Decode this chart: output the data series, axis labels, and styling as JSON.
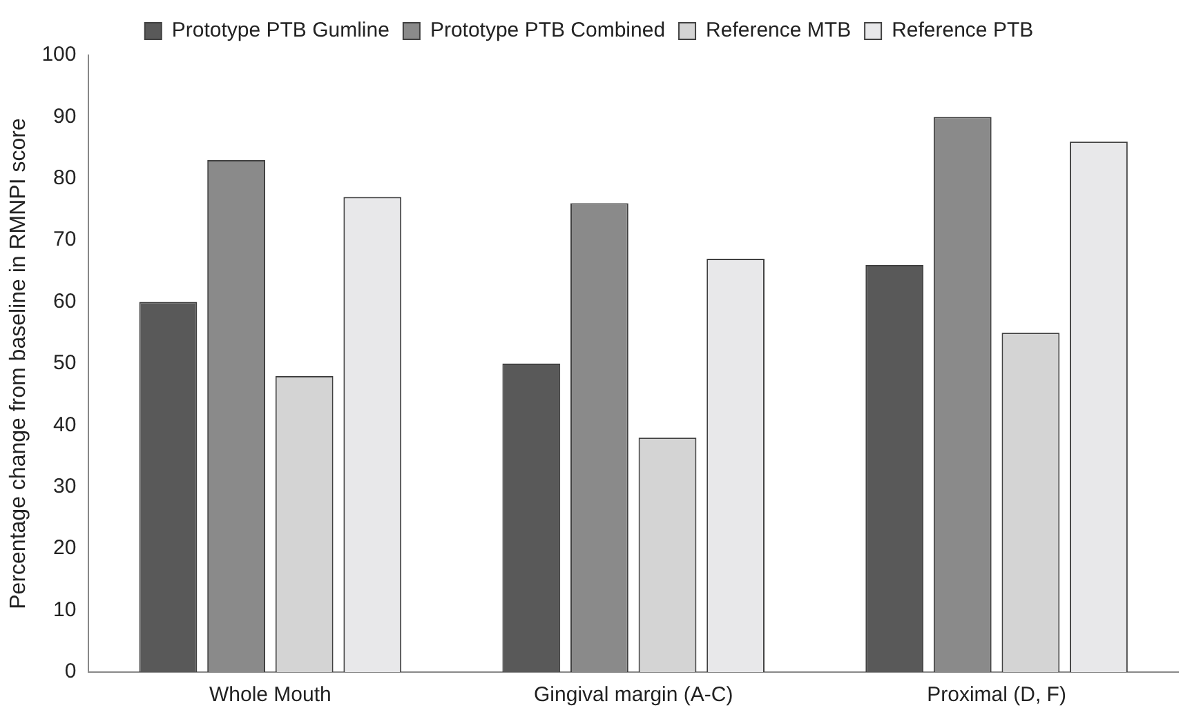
{
  "chart_data": {
    "type": "bar",
    "ylabel": "Percentage change from baseline in RMNPI score",
    "categories": [
      "Whole Mouth",
      "Gingival margin (A-C)",
      "Proximal (D, F)"
    ],
    "series": [
      {
        "name": "Prototype PTB Gumline",
        "color": "#595959",
        "values": [
          60,
          50,
          66
        ]
      },
      {
        "name": "Prototype PTB Combined",
        "color": "#8a8a8a",
        "values": [
          83,
          76,
          90
        ]
      },
      {
        "name": "Reference MTB",
        "color": "#d4d4d4",
        "values": [
          48,
          38,
          55
        ]
      },
      {
        "name": "Reference PTB",
        "color": "#e8e8ea",
        "values": [
          77,
          67,
          86
        ]
      }
    ],
    "ylim": [
      0,
      100
    ],
    "yticks": [
      0,
      10,
      20,
      30,
      40,
      50,
      60,
      70,
      80,
      90,
      100
    ],
    "grid": false,
    "legend": "top"
  }
}
